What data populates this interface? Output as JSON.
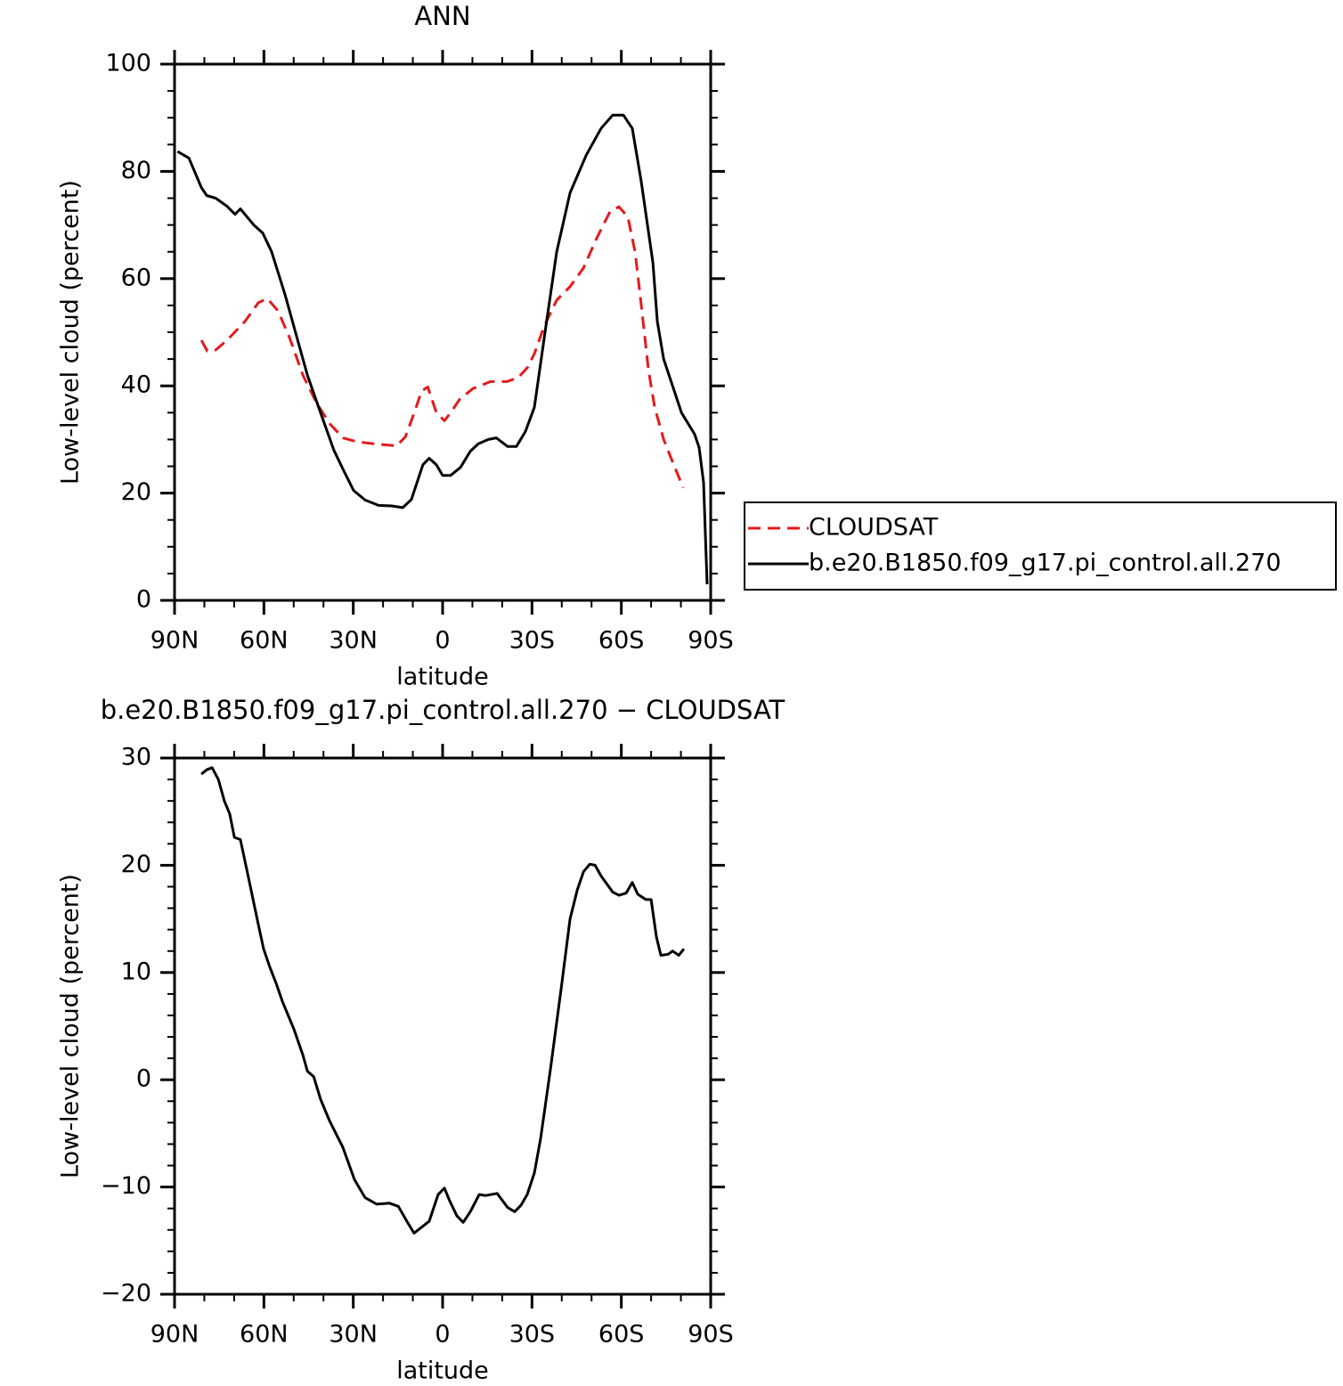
{
  "chart_data": [
    {
      "type": "line",
      "title": "ANN",
      "xlabel": "latitude",
      "ylabel": "Low-level cloud (percent)",
      "xlim": [
        90,
        -90
      ],
      "xticks": [
        {
          "value": 90,
          "label": "90N"
        },
        {
          "value": 60,
          "label": "60N"
        },
        {
          "value": 30,
          "label": "30N"
        },
        0,
        {
          "value": -30,
          "label": "30S"
        },
        {
          "value": -60,
          "label": "60S"
        },
        {
          "value": -90,
          "label": "90S"
        }
      ],
      "xminorticks": [
        80,
        70,
        50,
        40,
        20,
        10,
        -10,
        -20,
        -40,
        -50,
        -70,
        -80
      ],
      "ylim": [
        0,
        100
      ],
      "yticks": [
        0,
        20,
        40,
        60,
        80,
        100
      ],
      "yminorticks": [
        5,
        10,
        15,
        25,
        30,
        35,
        45,
        50,
        55,
        65,
        70,
        75,
        85,
        90,
        95
      ],
      "legend": "right",
      "series": [
        {
          "name": "CLOUDSAT",
          "color": "#e41a1c",
          "dashed": true,
          "x": [
            81,
            79,
            76.2,
            72.4,
            66.4,
            61.9,
            58.9,
            55.3,
            51.4,
            46.9,
            42.5,
            38,
            33.5,
            29,
            23,
            15.5,
            12.5,
            9.5,
            7.1,
            5,
            2.1,
            -0.6,
            -2.7,
            -5.7,
            -10.2,
            -16.1,
            -21.5,
            -25.3,
            -28.6,
            -30.8,
            -34,
            -38.3,
            -42.8,
            -47.3,
            -51.7,
            -56.2,
            -59.2,
            -62.2,
            -64.6,
            -66.7,
            -69.1,
            -71.2,
            -74.2,
            -77.8,
            -80.8
          ],
          "values": [
            48.5,
            46.5,
            46.7,
            48.5,
            52,
            55.5,
            56.3,
            54,
            49,
            42,
            37,
            33,
            30.3,
            29.6,
            29.2,
            28.8,
            30.5,
            35,
            39,
            39.8,
            35,
            33.5,
            35,
            37.5,
            39.5,
            40.8,
            40.8,
            41.5,
            43.5,
            46,
            51,
            56,
            58.5,
            62,
            67.5,
            72.5,
            73.4,
            71.5,
            65,
            55,
            43,
            36,
            30,
            25,
            21
          ]
        },
        {
          "name": "b.e20.B1850.f09_g17.pi_control.all.270",
          "color": "#000000",
          "dashed": false,
          "x": [
            89,
            85.2,
            81,
            79.2,
            76.2,
            72.4,
            69.7,
            67.9,
            63.4,
            60.4,
            57.4,
            52.9,
            48.4,
            45.4,
            41,
            36.5,
            33.5,
            29.9,
            26,
            21.5,
            17,
            13.4,
            10.5,
            6.6,
            4.5,
            2.1,
            0,
            -2.7,
            -6,
            -9.3,
            -12,
            -15.3,
            -18,
            -21.8,
            -24.8,
            -27.8,
            -30.8,
            -34.4,
            -38.3,
            -42.8,
            -48.2,
            -53.2,
            -57.1,
            -60.7,
            -63.7,
            -66.7,
            -70.6,
            -72.1,
            -74.2,
            -77.2,
            -80.2,
            -84.6,
            -86.1,
            -87.6,
            -88.8
          ],
          "values": [
            83.7,
            82.5,
            77,
            75.5,
            75,
            73.5,
            72,
            73,
            70,
            68.5,
            65,
            57,
            48,
            42,
            35,
            28,
            24.5,
            20.5,
            18.7,
            17.7,
            17.6,
            17.3,
            18.8,
            25.3,
            26.5,
            25.3,
            23.3,
            23.3,
            24.8,
            27.8,
            29.2,
            30,
            30.3,
            28.7,
            28.7,
            31.5,
            36,
            50,
            65,
            76,
            83,
            88,
            90.5,
            90.5,
            88,
            78,
            63,
            52,
            45,
            40,
            35,
            31,
            28.5,
            22,
            3
          ]
        }
      ]
    },
    {
      "type": "line",
      "title": "b.e20.B1850.f09_g17.pi_control.all.270 − CLOUDSAT",
      "xlabel": "latitude",
      "ylabel": "Low-level cloud (percent)",
      "xlim": [
        90,
        -90
      ],
      "xticks": [
        {
          "value": 90,
          "label": "90N"
        },
        {
          "value": 60,
          "label": "60N"
        },
        {
          "value": 30,
          "label": "30N"
        },
        0,
        {
          "value": -30,
          "label": "30S"
        },
        {
          "value": -60,
          "label": "60S"
        },
        {
          "value": -90,
          "label": "90S"
        }
      ],
      "xminorticks": [
        80,
        70,
        50,
        40,
        20,
        10,
        -10,
        -20,
        -40,
        -50,
        -70,
        -80
      ],
      "ylim": [
        -20,
        30
      ],
      "yticks": [
        {
          "value": -20,
          "label": "−20"
        },
        {
          "value": -10,
          "label": "−10"
        },
        0,
        10,
        20,
        30
      ],
      "yminorticks": [
        -18,
        -16,
        -14,
        -12,
        -8,
        -6,
        -4,
        -2,
        2,
        4,
        6,
        8,
        12,
        14,
        16,
        18,
        22,
        24,
        26,
        28
      ],
      "series": [
        {
          "color": "#000000",
          "dashed": false,
          "x": [
            81,
            79.2,
            77.4,
            75.3,
            73.3,
            71.5,
            69.9,
            67.9,
            64.9,
            61.9,
            60.1,
            58,
            55.9,
            53.8,
            49.9,
            46.9,
            45.4,
            43.3,
            41,
            38,
            33.5,
            29.6,
            26,
            22.1,
            17.9,
            14.9,
            12,
            9.6,
            4.5,
            1.5,
            -0.6,
            -2.4,
            -4.8,
            -6.9,
            -9.3,
            -12.3,
            -14.4,
            -18.3,
            -21.8,
            -24.2,
            -26.3,
            -28.4,
            -30.8,
            -32.9,
            -36.2,
            -39.8,
            -42.8,
            -45.2,
            -47.3,
            -49.4,
            -51.2,
            -53.2,
            -57.1,
            -59.2,
            -61.6,
            -63.7,
            -65.5,
            -68.2,
            -70,
            -71.8,
            -73.3,
            -75.7,
            -77.2,
            -79.3,
            -81
          ],
          "values": [
            28.5,
            28.9,
            29.1,
            28,
            26,
            24.8,
            22.6,
            22.4,
            18.5,
            14.5,
            12.2,
            10.5,
            9,
            7.3,
            4.7,
            2.3,
            0.8,
            0.3,
            -1.8,
            -3.8,
            -6.3,
            -9.3,
            -11,
            -11.6,
            -11.5,
            -11.8,
            -13.2,
            -14.3,
            -13.2,
            -10.7,
            -10.1,
            -11.3,
            -12.7,
            -13.3,
            -12.3,
            -10.7,
            -10.8,
            -10.6,
            -11.9,
            -12.3,
            -11.7,
            -10.7,
            -8.7,
            -5.5,
            1,
            8.5,
            15,
            17.7,
            19.4,
            20.1,
            20,
            19,
            17.5,
            17.2,
            17.4,
            18.4,
            17.3,
            16.8,
            16.8,
            13.3,
            11.6,
            11.7,
            12,
            11.6,
            12.2
          ]
        }
      ]
    }
  ]
}
